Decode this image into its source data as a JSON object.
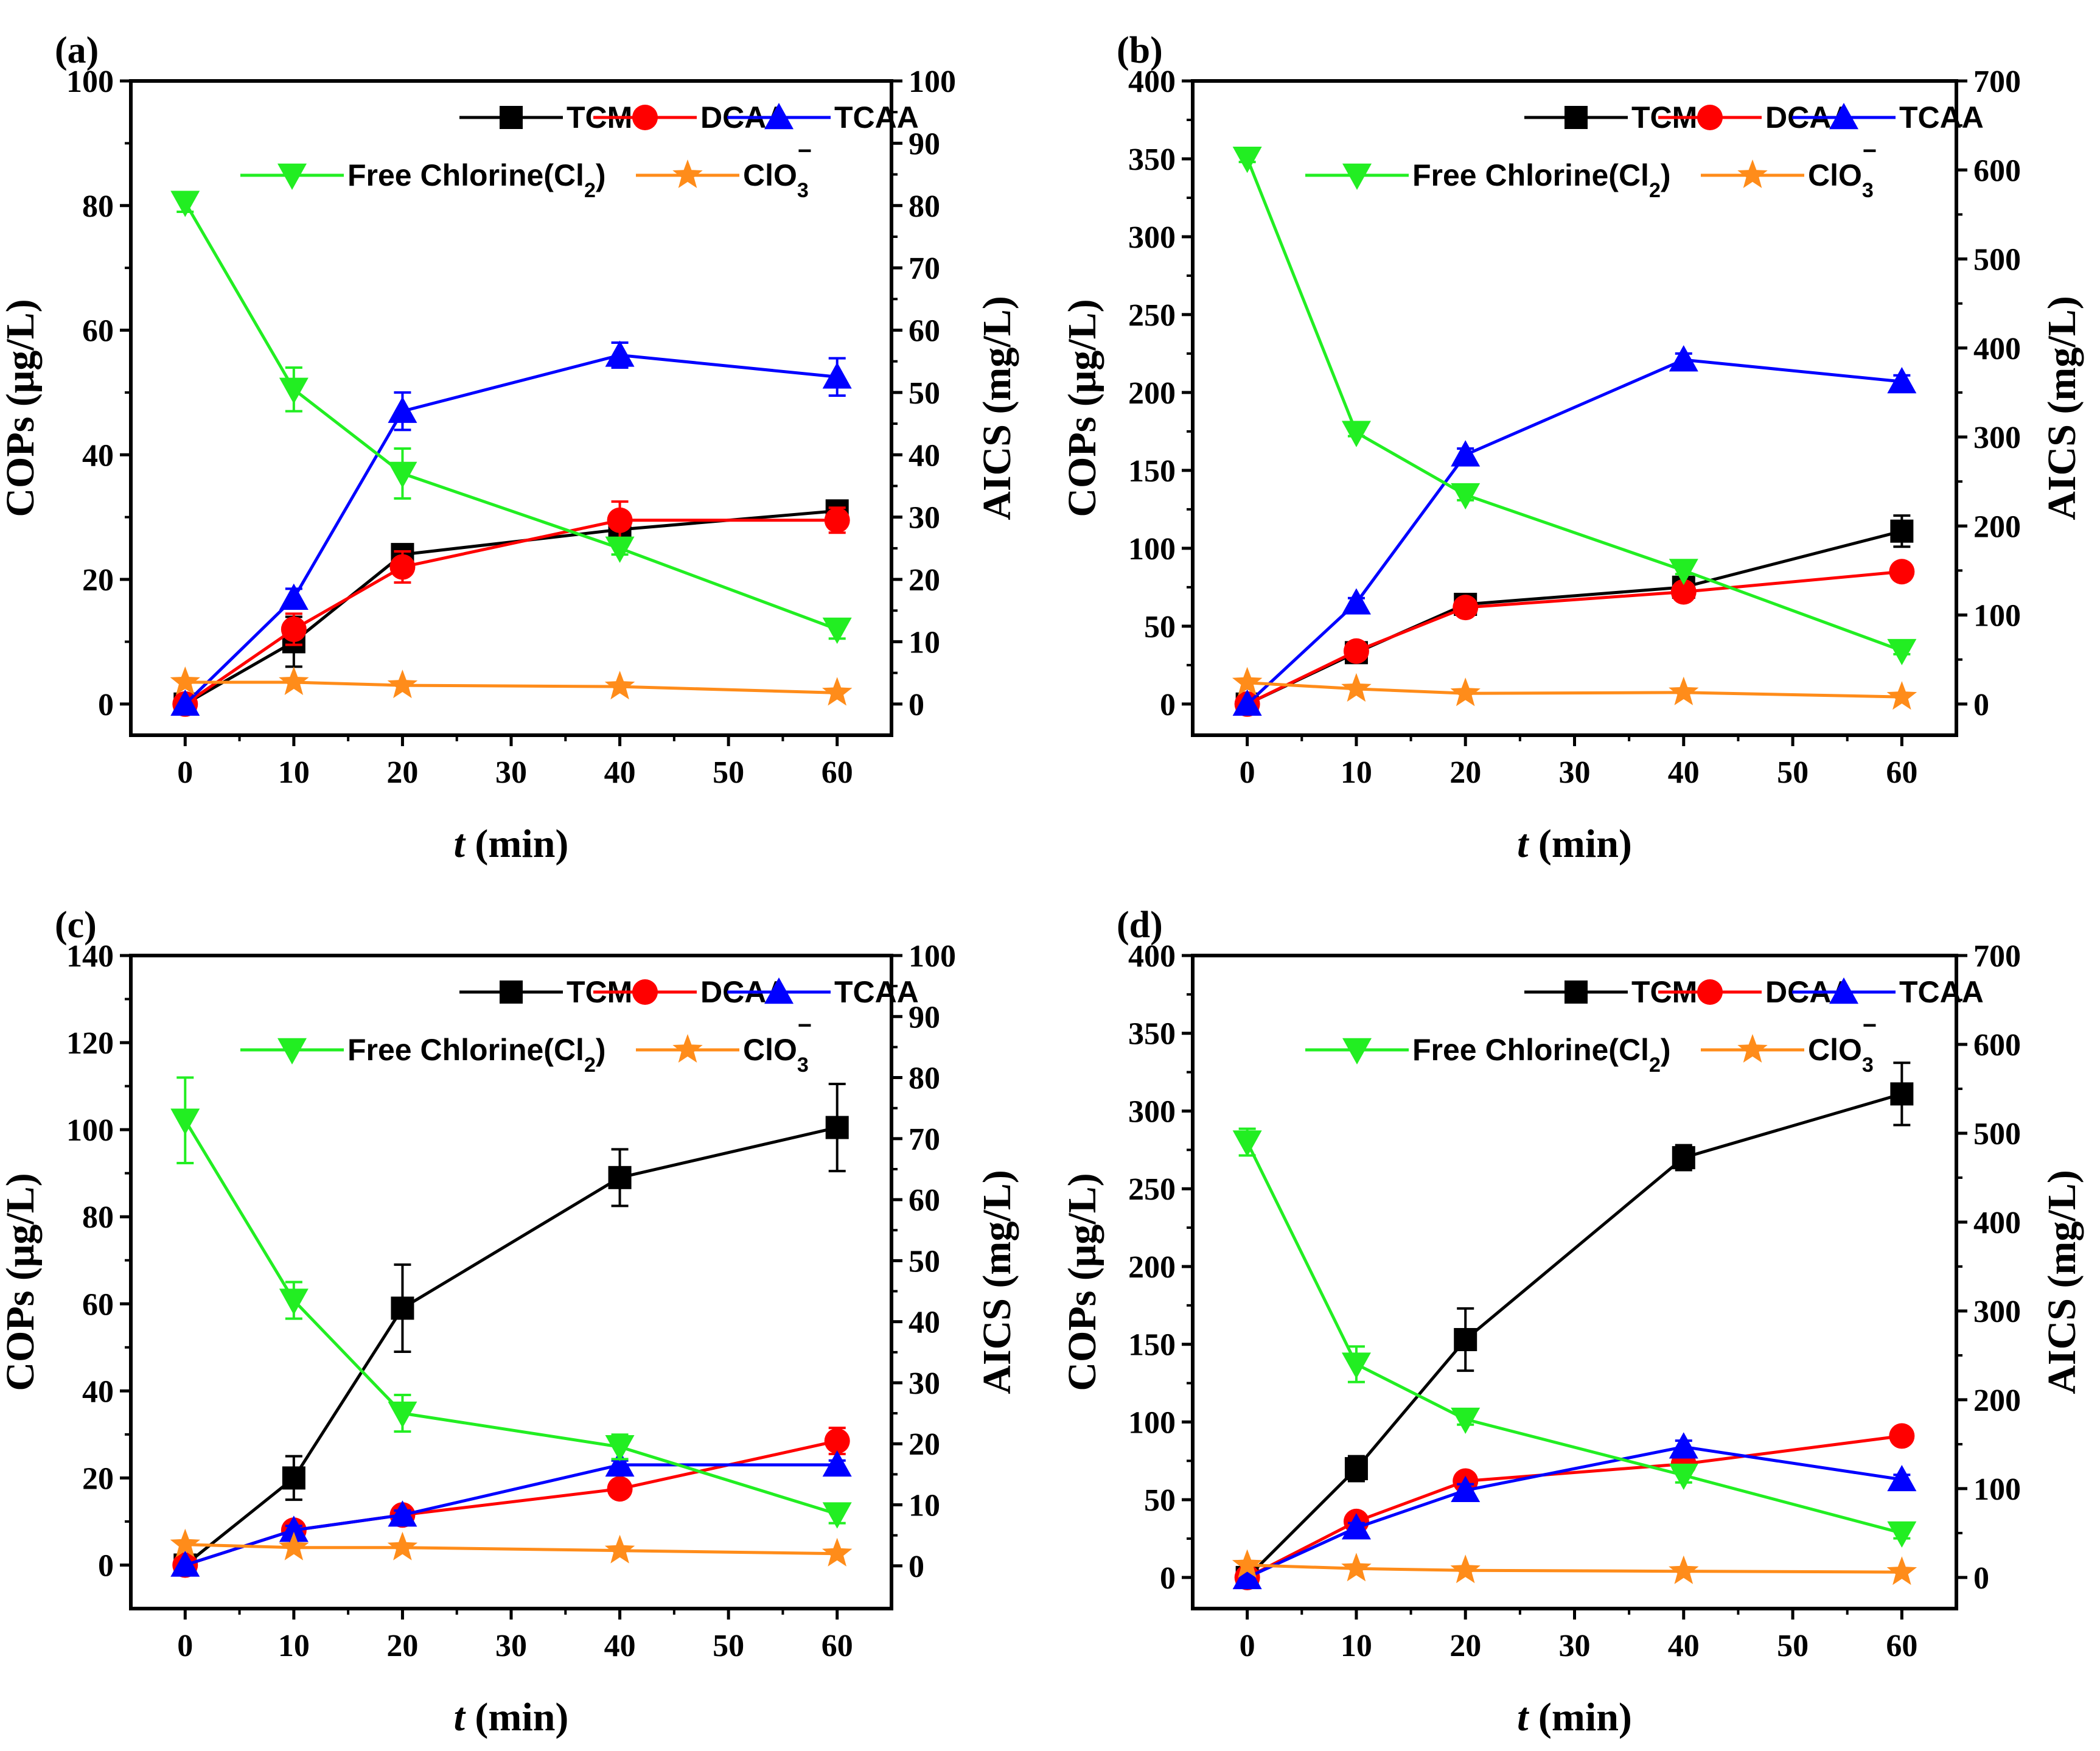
{
  "figure_title": "",
  "colors": {
    "TCM": "#000000",
    "DCAA": "#ff0000",
    "TCAA": "#0000ff",
    "Free Chlorine": "#22ee22",
    "ClO3": "#ff8c1a"
  },
  "chart_data": [
    {
      "type": "line",
      "panel": "(a)",
      "xlabel_italic": "t",
      "xlabel_rest": " (min)",
      "ylabel": "COPs (μg/L)",
      "y2label": "AICS (mg/L)",
      "xlim": [
        -5,
        65
      ],
      "xticks": [
        0,
        10,
        20,
        30,
        40,
        50,
        60
      ],
      "ylim": [
        -5,
        100
      ],
      "yticks": [
        0,
        20,
        40,
        60,
        80,
        100
      ],
      "y2lim": [
        -5,
        100
      ],
      "y2ticks": [
        0,
        10,
        20,
        30,
        40,
        50,
        60,
        70,
        80,
        90,
        100
      ],
      "x": [
        0,
        10,
        20,
        40,
        60
      ],
      "series": [
        {
          "name": "TCM",
          "axis": "left",
          "marker": "square",
          "values": [
            0,
            10,
            24,
            28,
            31
          ],
          "err": [
            0,
            4,
            1.5,
            1,
            1.5
          ]
        },
        {
          "name": "DCAA",
          "axis": "left",
          "marker": "circle",
          "values": [
            0,
            12,
            22,
            29.5,
            29.5
          ],
          "err": [
            0,
            2.5,
            2.5,
            3,
            2
          ]
        },
        {
          "name": "TCAA",
          "axis": "left",
          "marker": "triangle-up",
          "values": [
            0,
            17,
            47,
            56,
            52.5
          ],
          "err": [
            0,
            1.5,
            3,
            2,
            3
          ]
        },
        {
          "name": "Free Chlorine(Cl2)",
          "axis": "right",
          "marker": "triangle-down",
          "values": [
            80.5,
            50.5,
            37,
            25,
            12
          ],
          "err": [
            1.5,
            3.5,
            4,
            1,
            1.5
          ]
        },
        {
          "name": "ClO3−",
          "axis": "right",
          "marker": "star",
          "values": [
            3.5,
            3.5,
            3,
            2.8,
            1.8
          ],
          "err": [
            0,
            0,
            0,
            0,
            0
          ]
        }
      ]
    },
    {
      "type": "line",
      "panel": "(b)",
      "xlabel_italic": "t",
      "xlabel_rest": " (min)",
      "ylabel": "COPs (μg/L)",
      "y2label": "AICS (mg/L)",
      "xlim": [
        -5,
        65
      ],
      "xticks": [
        0,
        10,
        20,
        30,
        40,
        50,
        60
      ],
      "ylim": [
        -20,
        400
      ],
      "yticks": [
        0,
        50,
        100,
        150,
        200,
        250,
        300,
        350,
        400
      ],
      "y2lim": [
        -35,
        700
      ],
      "y2ticks": [
        0,
        100,
        200,
        300,
        400,
        500,
        600,
        700
      ],
      "x": [
        0,
        10,
        20,
        40,
        60
      ],
      "series": [
        {
          "name": "TCM",
          "axis": "left",
          "marker": "square",
          "values": [
            0,
            33,
            64,
            75,
            111
          ],
          "err": [
            0,
            4,
            5,
            6,
            10
          ]
        },
        {
          "name": "DCAA",
          "axis": "left",
          "marker": "circle",
          "values": [
            0,
            34,
            62,
            72,
            85
          ],
          "err": [
            0,
            3,
            4,
            5,
            4
          ]
        },
        {
          "name": "TCAA",
          "axis": "left",
          "marker": "triangle-up",
          "values": [
            0,
            65,
            160,
            221,
            207
          ],
          "err": [
            0,
            3,
            4,
            4,
            4
          ]
        },
        {
          "name": "Free Chlorine(Cl2)",
          "axis": "right",
          "marker": "triangle-down",
          "values": [
            613,
            305,
            235,
            150,
            60
          ],
          "err": [
            4,
            4,
            6,
            4,
            4
          ]
        },
        {
          "name": "ClO3−",
          "axis": "right",
          "marker": "star",
          "values": [
            24,
            17,
            12,
            13,
            8
          ],
          "err": [
            0,
            0,
            0,
            0,
            0
          ]
        }
      ]
    },
    {
      "type": "line",
      "panel": "(c)",
      "xlabel_italic": "t",
      "xlabel_rest": " (min)",
      "ylabel": "COPs (μg/L)",
      "y2label": "AICS (mg/L)",
      "xlim": [
        -5,
        65
      ],
      "xticks": [
        0,
        10,
        20,
        30,
        40,
        50,
        60
      ],
      "ylim": [
        -10,
        140
      ],
      "yticks": [
        0,
        20,
        40,
        60,
        80,
        100,
        120,
        140
      ],
      "y2lim": [
        -7,
        100
      ],
      "y2ticks": [
        0,
        10,
        20,
        30,
        40,
        50,
        60,
        70,
        80,
        90,
        100
      ],
      "x": [
        0,
        10,
        20,
        40,
        60
      ],
      "series": [
        {
          "name": "TCM",
          "axis": "left",
          "marker": "square",
          "values": [
            0,
            20,
            59,
            89,
            100.5
          ],
          "err": [
            0,
            5,
            10,
            6.5,
            10
          ]
        },
        {
          "name": "DCAA",
          "axis": "left",
          "marker": "circle",
          "values": [
            0,
            8,
            11.5,
            17.5,
            28.5
          ],
          "err": [
            0,
            1.5,
            1.5,
            1.5,
            3
          ]
        },
        {
          "name": "TCAA",
          "axis": "left",
          "marker": "triangle-up",
          "values": [
            0,
            8,
            11.5,
            23,
            23
          ],
          "err": [
            0,
            1,
            1,
            1,
            1
          ]
        },
        {
          "name": "Free Chlorine(Cl2)",
          "axis": "right",
          "marker": "triangle-down",
          "values": [
            73,
            43.5,
            25,
            19.5,
            8.5
          ],
          "err": [
            7,
            3,
            3,
            2,
            1.5
          ]
        },
        {
          "name": "ClO3−",
          "axis": "right",
          "marker": "star",
          "values": [
            3.5,
            3,
            3,
            2.5,
            2
          ],
          "err": [
            0,
            0,
            0,
            0,
            0
          ]
        }
      ]
    },
    {
      "type": "line",
      "panel": "(d)",
      "xlabel_italic": "t",
      "xlabel_rest": " (min)",
      "ylabel": "COPs (μg/L)",
      "y2label": "AICS (mg/L)",
      "xlim": [
        -5,
        65
      ],
      "xticks": [
        0,
        10,
        20,
        30,
        40,
        50,
        60
      ],
      "ylim": [
        -20,
        400
      ],
      "yticks": [
        0,
        50,
        100,
        150,
        200,
        250,
        300,
        350,
        400
      ],
      "y2lim": [
        -35,
        700
      ],
      "y2ticks": [
        0,
        100,
        200,
        300,
        400,
        500,
        600,
        700
      ],
      "x": [
        0,
        10,
        20,
        40,
        60
      ],
      "series": [
        {
          "name": "TCM",
          "axis": "left",
          "marker": "square",
          "values": [
            0,
            70,
            153,
            270,
            311
          ],
          "err": [
            0,
            8,
            20,
            8,
            20
          ]
        },
        {
          "name": "DCAA",
          "axis": "left",
          "marker": "circle",
          "values": [
            0,
            36,
            62,
            73,
            91
          ],
          "err": [
            0,
            4,
            4,
            4,
            4
          ]
        },
        {
          "name": "TCAA",
          "axis": "left",
          "marker": "triangle-up",
          "values": [
            0,
            32,
            56,
            84,
            63
          ],
          "err": [
            0,
            3,
            4,
            4,
            3
          ]
        },
        {
          "name": "Free Chlorine(Cl2)",
          "axis": "right",
          "marker": "triangle-down",
          "values": [
            490,
            240,
            178,
            115,
            50
          ],
          "err": [
            15,
            20,
            6,
            8,
            6
          ]
        },
        {
          "name": "ClO3−",
          "axis": "right",
          "marker": "star",
          "values": [
            14,
            10,
            8,
            7,
            6
          ],
          "err": [
            0,
            0,
            0,
            0,
            0
          ]
        }
      ]
    }
  ]
}
